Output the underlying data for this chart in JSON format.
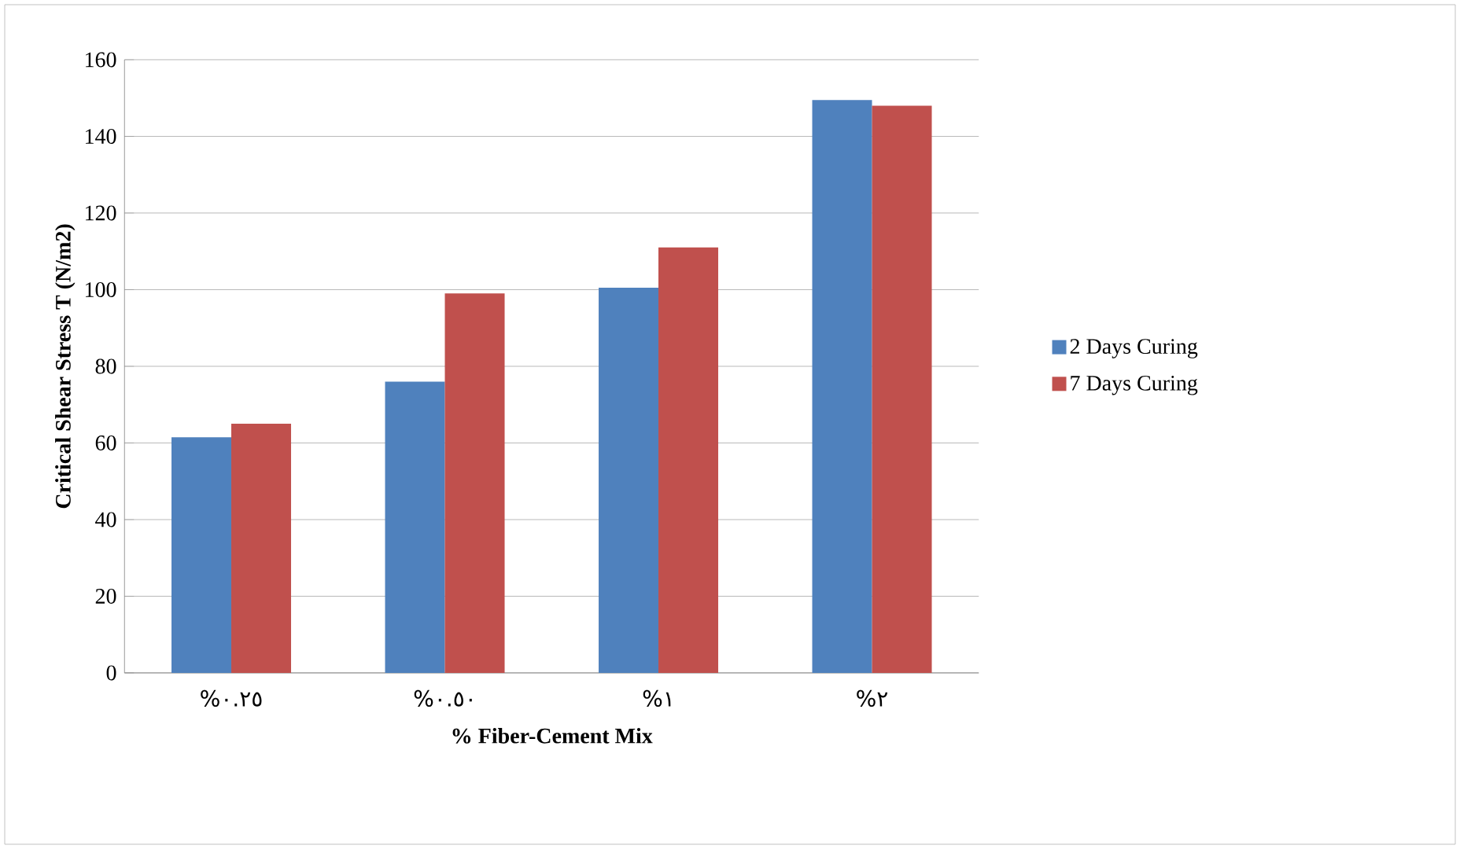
{
  "chart_data": {
    "type": "bar",
    "xlabel": "% Fiber-Cement Mix",
    "ylabel": "Critical Shear Stress T (N/m2)",
    "categories": [
      "%٠.٢٥",
      "%٠.٥٠",
      "%١",
      "%٢"
    ],
    "series": [
      {
        "name": "2 Days Curing",
        "color": "#4f81bd",
        "values": [
          61.5,
          76,
          100.5,
          149.5
        ]
      },
      {
        "name": "7 Days Curing",
        "color": "#c0504d",
        "values": [
          65,
          99,
          111,
          148
        ]
      }
    ],
    "ylim": [
      0,
      160
    ],
    "yticks": [
      0,
      20,
      40,
      60,
      80,
      100,
      120,
      140,
      160
    ],
    "grid": "y",
    "legend": "right"
  }
}
